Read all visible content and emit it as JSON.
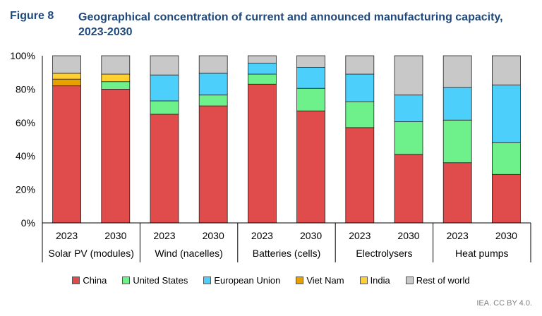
{
  "figure": {
    "label": "Figure 8",
    "title": "Geographical concentration of current and announced manufacturing capacity, 2023-2030"
  },
  "source": "IEA. CC BY 4.0.",
  "chart_data": {
    "type": "bar",
    "stacked": true,
    "y_ticks": [
      "0%",
      "20%",
      "40%",
      "60%",
      "80%",
      "100%"
    ],
    "ylim": [
      0,
      100
    ],
    "categories": [
      "2023",
      "2030",
      "2023",
      "2030",
      "2023",
      "2030",
      "2023",
      "2030",
      "2023",
      "2030"
    ],
    "groups": [
      "Solar PV (modules)",
      "Wind (nacelles)",
      "Batteries (cells)",
      "Electrolysers",
      "Heat pumps"
    ],
    "series": [
      {
        "name": "China",
        "color": "#e04b4b",
        "values": [
          82,
          80,
          65,
          70,
          83,
          67,
          57,
          41,
          36,
          29
        ]
      },
      {
        "name": "United States",
        "color": "#6ef08a",
        "values": [
          0,
          4.5,
          8,
          6.5,
          6,
          13.5,
          15.5,
          19.5,
          25.5,
          19
        ]
      },
      {
        "name": "European Union",
        "color": "#4dcffb",
        "values": [
          0,
          0,
          15.5,
          13,
          6.5,
          12.5,
          16.5,
          16,
          19.5,
          34.5
        ]
      },
      {
        "name": "Viet Nam",
        "color": "#e8a000",
        "values": [
          4,
          0,
          0,
          0,
          0,
          0,
          0,
          0,
          0,
          0
        ]
      },
      {
        "name": "India",
        "color": "#ffd030",
        "values": [
          3.5,
          4.5,
          0,
          0,
          0,
          0,
          0,
          0,
          0,
          0
        ]
      },
      {
        "name": "Rest of world",
        "color": "#c8c8c8",
        "values": [
          10.5,
          11,
          11.5,
          10.5,
          4.5,
          7,
          11,
          23.5,
          19,
          17.5
        ]
      }
    ]
  }
}
